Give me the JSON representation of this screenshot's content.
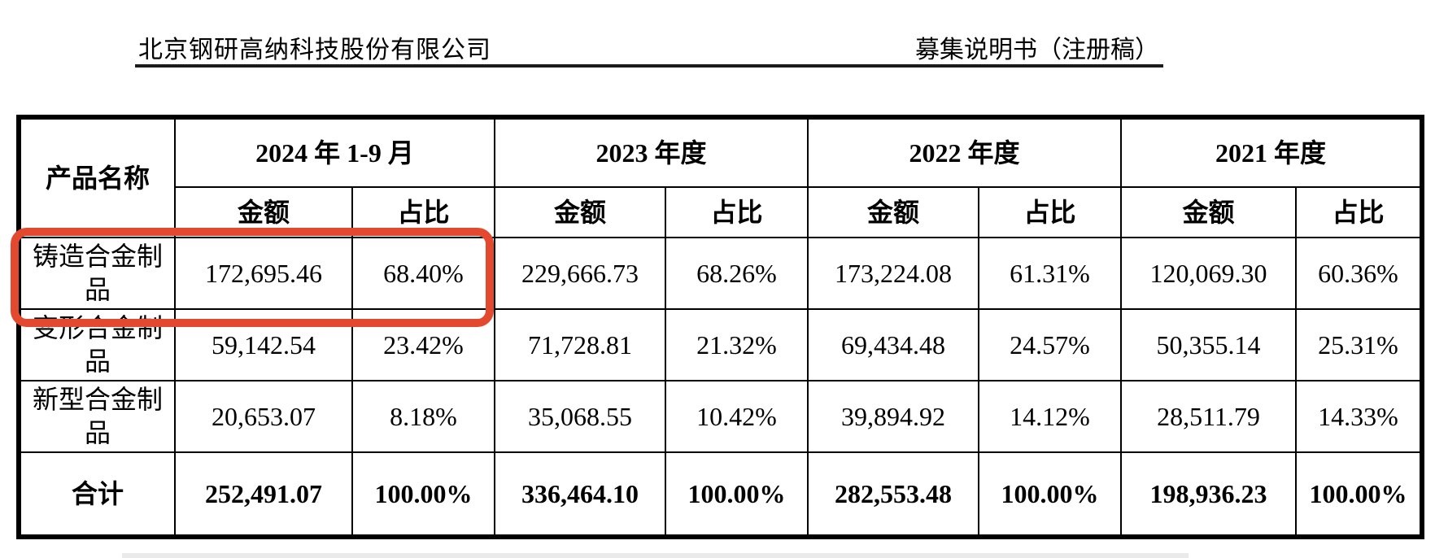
{
  "page_header": {
    "company_name": "北京钢研高纳科技股份有限公司",
    "doc_title": "募集说明书（注册稿）"
  },
  "table": {
    "product_col_header": "产品名称",
    "amount_label": "金额",
    "ratio_label": "占比",
    "periods": [
      "2024 年 1-9 月",
      "2023 年度",
      "2022 年度",
      "2021 年度"
    ],
    "rows": [
      {
        "name": "铸造合金制品",
        "highlighted": true,
        "values": [
          "172,695.46",
          "68.40%",
          "229,666.73",
          "68.26%",
          "173,224.08",
          "61.31%",
          "120,069.30",
          "60.36%"
        ]
      },
      {
        "name": "变形合金制品",
        "highlighted": false,
        "values": [
          "59,142.54",
          "23.42%",
          "71,728.81",
          "21.32%",
          "69,434.48",
          "24.57%",
          "50,355.14",
          "25.31%"
        ]
      },
      {
        "name": "新型合金制品",
        "highlighted": false,
        "values": [
          "20,653.07",
          "8.18%",
          "35,068.55",
          "10.42%",
          "39,894.92",
          "14.12%",
          "28,511.79",
          "14.33%"
        ]
      }
    ],
    "total_row": {
      "name": "合计",
      "values": [
        "252,491.07",
        "100.00%",
        "336,464.10",
        "100.00%",
        "282,553.48",
        "100.00%",
        "198,936.23",
        "100.00%"
      ]
    }
  },
  "annotation": {
    "highlight_color": "#e3492e"
  }
}
